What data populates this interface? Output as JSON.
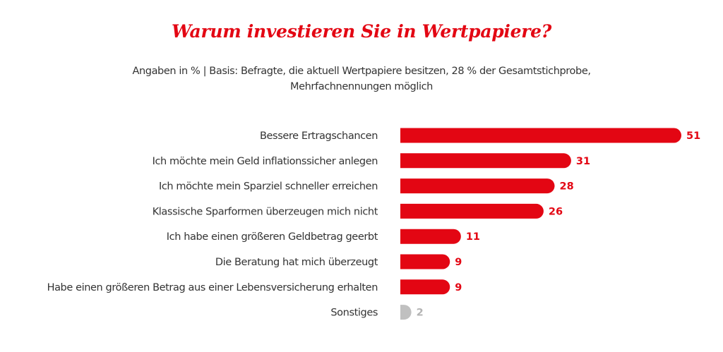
{
  "header": {
    "title": "Warum investieren Sie in Wertpapiere?",
    "subtitle_line1": "Angaben in % | Basis: Befragte, die aktuell Wertpapiere besitzen, 28 % der Gesamtstichprobe,",
    "subtitle_line2": "Mehrfachnennungen möglich"
  },
  "colors": {
    "accent": "#e30613",
    "muted": "#c0c0c0",
    "muted_text": "#b4b4b4",
    "text": "#333333"
  },
  "chart_data": {
    "type": "bar",
    "orientation": "horizontal",
    "title": "Warum investieren Sie in Wertpapiere?",
    "subtitle": "Angaben in % | Basis: Befragte, die aktuell Wertpapiere besitzen, 28 % der Gesamtstichprobe, Mehrfachnennungen möglich",
    "xlabel": "",
    "ylabel": "",
    "unit": "%",
    "xlim": [
      0,
      51
    ],
    "grid": false,
    "legend": "none",
    "categories": [
      "Bessere Ertragschancen",
      "Ich möchte mein Geld inflationssicher anlegen",
      "Ich möchte mein Sparziel schneller erreichen",
      "Klassische Sparformen überzeugen mich nicht",
      "Ich habe einen größeren Geldbetrag geerbt",
      "Die Beratung hat mich überzeugt",
      "Habe einen größeren Betrag aus einer Lebensversicherung erhalten",
      "Sonstiges"
    ],
    "values": [
      51,
      31,
      28,
      26,
      11,
      9,
      9,
      2
    ],
    "highlight": [
      true,
      true,
      true,
      true,
      true,
      true,
      true,
      false
    ]
  }
}
